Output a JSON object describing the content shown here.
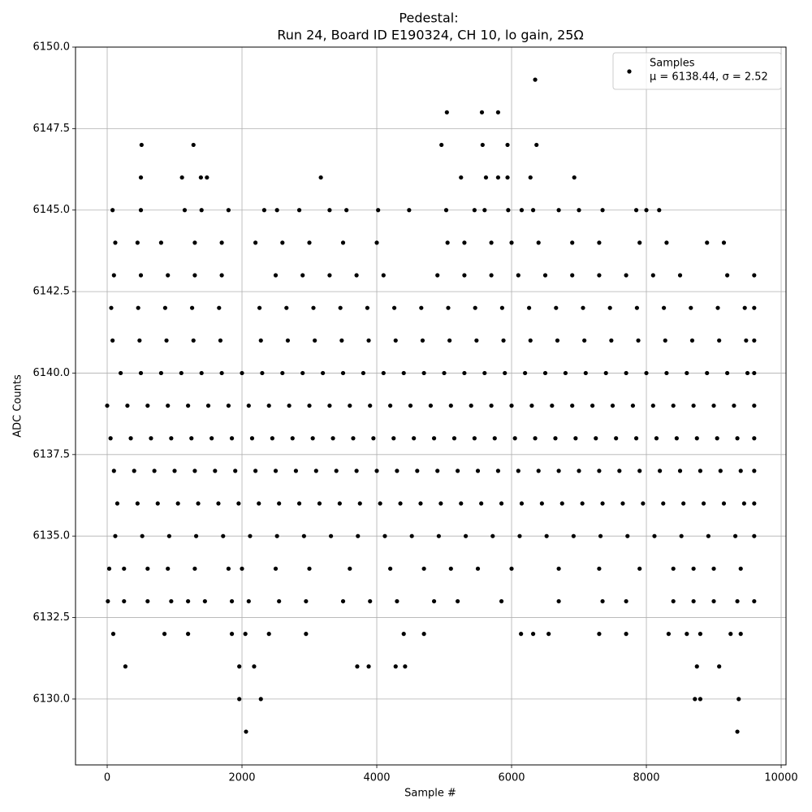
{
  "chart_data": {
    "type": "scatter",
    "title": "Pedestal:",
    "subtitle": "Run 24, Board ID E190324, CH 10, lo gain, 25Ω",
    "x_label": "Sample #",
    "y_label": "ADC Counts",
    "legend_note": "μ = 6138.44, σ = 2.52",
    "legend_position": "upper right",
    "grid": true,
    "xlim": [
      -470,
      10072
    ],
    "ylim": [
      6127.98,
      6150
    ],
    "xticks": [
      0,
      2000,
      4000,
      6000,
      8000,
      10000
    ],
    "yticks": [
      {
        "value": 6130,
        "label": "6130.0"
      },
      {
        "value": 6132.5,
        "label": "6132.5"
      },
      {
        "value": 6135,
        "label": "6135.0"
      },
      {
        "value": 6137.5,
        "label": "6137.5"
      },
      {
        "value": 6140,
        "label": "6140.0"
      },
      {
        "value": 6142.5,
        "label": "6142.5"
      },
      {
        "value": 6145,
        "label": "6145.0"
      },
      {
        "value": 6147.5,
        "label": "6147.5"
      },
      {
        "value": 6150,
        "label": "6150.0"
      }
    ],
    "series": [
      {
        "name": "Samples",
        "color": "#000000",
        "x": [
          0,
          300,
          600,
          900,
          1200,
          1500,
          1800,
          2100,
          2400,
          2700,
          3000,
          3300,
          3600,
          3900,
          4200,
          4500,
          4800,
          5100,
          5400,
          5700,
          6000,
          6300,
          6600,
          6900,
          7200,
          7500,
          7800,
          8100,
          8400,
          8700,
          9000,
          9300,
          9600,
          50,
          350,
          650,
          950,
          1250,
          1550,
          1850,
          2150,
          2450,
          2750,
          3050,
          3350,
          3650,
          3950,
          4250,
          4550,
          4850,
          5150,
          5450,
          5750,
          6050,
          6350,
          6650,
          6950,
          7250,
          7550,
          7850,
          8150,
          8450,
          8750,
          9050,
          9350,
          9600,
          100,
          400,
          700,
          1000,
          1300,
          1600,
          1900,
          2200,
          2500,
          2800,
          3100,
          3400,
          3700,
          4000,
          4300,
          4600,
          4900,
          5200,
          5500,
          5800,
          6100,
          6400,
          6700,
          7000,
          7300,
          7600,
          7900,
          8200,
          8500,
          8800,
          9100,
          9400,
          9600,
          150,
          450,
          750,
          1050,
          1350,
          1650,
          1950,
          2250,
          2550,
          2850,
          3150,
          3450,
          3750,
          4050,
          4350,
          4650,
          4950,
          5250,
          5550,
          5850,
          6150,
          6450,
          6750,
          7050,
          7350,
          7650,
          7950,
          8250,
          8550,
          8850,
          9150,
          9450,
          9600,
          200,
          500,
          800,
          1100,
          1400,
          1700,
          2000,
          2300,
          2600,
          2900,
          3200,
          3500,
          3800,
          4100,
          4400,
          4700,
          5000,
          5300,
          5600,
          5900,
          6200,
          6500,
          6800,
          7100,
          7400,
          7700,
          8000,
          8300,
          8600,
          8900,
          9200,
          9500,
          9600,
          120,
          520,
          920,
          1320,
          1720,
          2120,
          2520,
          2920,
          3320,
          3720,
          4120,
          4520,
          4920,
          5320,
          5720,
          6120,
          6520,
          6920,
          7320,
          7720,
          8120,
          8520,
          8920,
          9320,
          9600,
          80,
          480,
          880,
          1280,
          1680,
          2280,
          2680,
          3080,
          3480,
          3880,
          4280,
          4680,
          5080,
          5480,
          5880,
          6280,
          6680,
          7080,
          7480,
          7880,
          8280,
          8680,
          9080,
          9480,
          9600,
          60,
          460,
          860,
          1260,
          1660,
          2260,
          2660,
          3060,
          3460,
          3860,
          4260,
          4660,
          5060,
          5460,
          5860,
          6260,
          6660,
          7060,
          7460,
          7860,
          8260,
          8660,
          9060,
          9460,
          9600,
          100,
          500,
          900,
          1300,
          1700,
          2500,
          2900,
          3300,
          3700,
          4100,
          4900,
          5300,
          5700,
          6100,
          6500,
          6900,
          7300,
          7700,
          8100,
          8500,
          9200,
          9600,
          30,
          250,
          600,
          900,
          1300,
          1800,
          2000,
          2500,
          3000,
          3600,
          4200,
          4700,
          5100,
          5500,
          6000,
          6700,
          7300,
          7900,
          8400,
          8700,
          9000,
          9400,
          120,
          450,
          800,
          1300,
          1700,
          2200,
          2600,
          3000,
          3500,
          4000,
          5050,
          5300,
          5700,
          6000,
          6400,
          6900,
          7300,
          7900,
          8300,
          8900,
          9150,
          10,
          250,
          600,
          950,
          1200,
          1450,
          1850,
          2100,
          2550,
          2950,
          3500,
          3900,
          4300,
          4850,
          5200,
          5850,
          6700,
          7350,
          7700,
          8400,
          8700,
          9000,
          9350,
          9600,
          80,
          500,
          1150,
          1400,
          1800,
          2330,
          2520,
          2850,
          3300,
          3550,
          4020,
          4480,
          5030,
          5450,
          5600,
          5950,
          6150,
          6320,
          6700,
          7000,
          7350,
          7850,
          8000,
          8190,
          90,
          850,
          1200,
          1850,
          2050,
          2400,
          2950,
          4400,
          4700,
          6140,
          6320,
          6550,
          7300,
          7700,
          8330,
          8600,
          8800,
          9250,
          9400,
          500,
          1110,
          1390,
          1480,
          3170,
          5250,
          5620,
          5800,
          5940,
          6280,
          6930,
          510,
          1280,
          4960,
          5570,
          5940,
          6370,
          5040,
          5560,
          5800,
          6350,
          270,
          1960,
          2180,
          3710,
          3880,
          4280,
          4420,
          8750,
          9080,
          1960,
          2280,
          8720,
          8800,
          9370,
          2060,
          9350
        ],
        "values": [
          6139,
          6139,
          6139,
          6139,
          6139,
          6139,
          6139,
          6139,
          6139,
          6139,
          6139,
          6139,
          6139,
          6139,
          6139,
          6139,
          6139,
          6139,
          6139,
          6139,
          6139,
          6139,
          6139,
          6139,
          6139,
          6139,
          6139,
          6139,
          6139,
          6139,
          6139,
          6139,
          6139,
          6138,
          6138,
          6138,
          6138,
          6138,
          6138,
          6138,
          6138,
          6138,
          6138,
          6138,
          6138,
          6138,
          6138,
          6138,
          6138,
          6138,
          6138,
          6138,
          6138,
          6138,
          6138,
          6138,
          6138,
          6138,
          6138,
          6138,
          6138,
          6138,
          6138,
          6138,
          6138,
          6138,
          6137,
          6137,
          6137,
          6137,
          6137,
          6137,
          6137,
          6137,
          6137,
          6137,
          6137,
          6137,
          6137,
          6137,
          6137,
          6137,
          6137,
          6137,
          6137,
          6137,
          6137,
          6137,
          6137,
          6137,
          6137,
          6137,
          6137,
          6137,
          6137,
          6137,
          6137,
          6137,
          6137,
          6136,
          6136,
          6136,
          6136,
          6136,
          6136,
          6136,
          6136,
          6136,
          6136,
          6136,
          6136,
          6136,
          6136,
          6136,
          6136,
          6136,
          6136,
          6136,
          6136,
          6136,
          6136,
          6136,
          6136,
          6136,
          6136,
          6136,
          6136,
          6136,
          6136,
          6136,
          6136,
          6136,
          6140,
          6140,
          6140,
          6140,
          6140,
          6140,
          6140,
          6140,
          6140,
          6140,
          6140,
          6140,
          6140,
          6140,
          6140,
          6140,
          6140,
          6140,
          6140,
          6140,
          6140,
          6140,
          6140,
          6140,
          6140,
          6140,
          6140,
          6140,
          6140,
          6140,
          6140,
          6140,
          6140,
          6135,
          6135,
          6135,
          6135,
          6135,
          6135,
          6135,
          6135,
          6135,
          6135,
          6135,
          6135,
          6135,
          6135,
          6135,
          6135,
          6135,
          6135,
          6135,
          6135,
          6135,
          6135,
          6135,
          6135,
          6135,
          6141,
          6141,
          6141,
          6141,
          6141,
          6141,
          6141,
          6141,
          6141,
          6141,
          6141,
          6141,
          6141,
          6141,
          6141,
          6141,
          6141,
          6141,
          6141,
          6141,
          6141,
          6141,
          6141,
          6141,
          6141,
          6142,
          6142,
          6142,
          6142,
          6142,
          6142,
          6142,
          6142,
          6142,
          6142,
          6142,
          6142,
          6142,
          6142,
          6142,
          6142,
          6142,
          6142,
          6142,
          6142,
          6142,
          6142,
          6142,
          6142,
          6142,
          6143,
          6143,
          6143,
          6143,
          6143,
          6143,
          6143,
          6143,
          6143,
          6143,
          6143,
          6143,
          6143,
          6143,
          6143,
          6143,
          6143,
          6143,
          6143,
          6143,
          6143,
          6143,
          6134,
          6134,
          6134,
          6134,
          6134,
          6134,
          6134,
          6134,
          6134,
          6134,
          6134,
          6134,
          6134,
          6134,
          6134,
          6134,
          6134,
          6134,
          6134,
          6134,
          6134,
          6134,
          6144,
          6144,
          6144,
          6144,
          6144,
          6144,
          6144,
          6144,
          6144,
          6144,
          6144,
          6144,
          6144,
          6144,
          6144,
          6144,
          6144,
          6144,
          6144,
          6144,
          6144,
          6133,
          6133,
          6133,
          6133,
          6133,
          6133,
          6133,
          6133,
          6133,
          6133,
          6133,
          6133,
          6133,
          6133,
          6133,
          6133,
          6133,
          6133,
          6133,
          6133,
          6133,
          6133,
          6133,
          6133,
          6145,
          6145,
          6145,
          6145,
          6145,
          6145,
          6145,
          6145,
          6145,
          6145,
          6145,
          6145,
          6145,
          6145,
          6145,
          6145,
          6145,
          6145,
          6145,
          6145,
          6145,
          6145,
          6145,
          6145,
          6132,
          6132,
          6132,
          6132,
          6132,
          6132,
          6132,
          6132,
          6132,
          6132,
          6132,
          6132,
          6132,
          6132,
          6132,
          6132,
          6132,
          6132,
          6132,
          6146,
          6146,
          6146,
          6146,
          6146,
          6146,
          6146,
          6146,
          6146,
          6146,
          6146,
          6147,
          6147,
          6147,
          6147,
          6147,
          6147,
          6148,
          6148,
          6148,
          6149,
          6131,
          6131,
          6131,
          6131,
          6131,
          6131,
          6131,
          6131,
          6131,
          6130,
          6130,
          6130,
          6130,
          6130,
          6129,
          6129
        ]
      }
    ]
  }
}
